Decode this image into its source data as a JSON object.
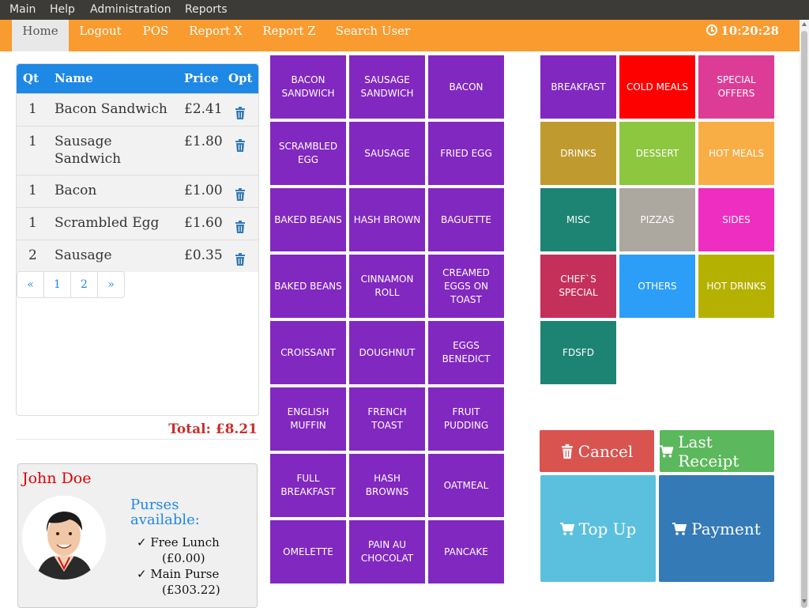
{
  "menubar": {
    "items": [
      "Main",
      "Help",
      "Administration",
      "Reports"
    ]
  },
  "nav": {
    "home": "Home",
    "logout": "Logout",
    "pos": "POS",
    "report_x": "Report X",
    "report_z": "Report Z",
    "search_user": "Search User",
    "clock": "10:20:28"
  },
  "order": {
    "headers": {
      "qt": "Qt",
      "name": "Name",
      "price": "Price",
      "opt": "Opt"
    },
    "rows": [
      {
        "qt": "1",
        "name": "Bacon Sandwich",
        "price": "£2.41"
      },
      {
        "qt": "1",
        "name": "Sausage Sandwich",
        "price": "£1.80"
      },
      {
        "qt": "1",
        "name": "Bacon",
        "price": "£1.00"
      },
      {
        "qt": "1",
        "name": "Scrambled Egg",
        "price": "£1.60"
      },
      {
        "qt": "2",
        "name": "Sausage",
        "price": "£0.35"
      }
    ],
    "pagination": [
      "«",
      "1",
      "2",
      "»"
    ],
    "total": "Total: £8.21"
  },
  "user": {
    "name": "John Doe",
    "purses_title": "Purses available:",
    "purses": [
      {
        "name": "✓ Free Lunch",
        "amount": "(£0.00)"
      },
      {
        "name": "✓ Main Purse",
        "amount": "(£303.22)"
      }
    ]
  },
  "products": [
    "BACON SANDWICH",
    "SAUSAGE SANDWICH",
    "BACON",
    "SCRAMBLED EGG",
    "SAUSAGE",
    "FRIED EGG",
    "BAKED BEANS",
    "HASH BROWN",
    "BAGUETTE",
    "BAKED BEANS",
    "CINNAMON ROLL",
    "CREAMED EGGS ON TOAST",
    "CROISSANT",
    "DOUGHNUT",
    "EGGS BENEDICT",
    "ENGLISH MUFFIN",
    "FRENCH TOAST",
    "FRUIT PUDDING",
    "FULL BREAKFAST",
    "HASH BROWNS",
    "OATMEAL",
    "OMELETTE",
    "PAIN AU CHOCOLAT",
    "PANCAKE"
  ],
  "product_color": "#8128c0",
  "categories": [
    {
      "label": "BREAKFAST",
      "color": "#8128c0"
    },
    {
      "label": "COLD MEALS",
      "color": "#fd0000"
    },
    {
      "label": "SPECIAL OFFERS",
      "color": "#dd3c96"
    },
    {
      "label": "DRINKS",
      "color": "#bf9a2f"
    },
    {
      "label": "DESSERT",
      "color": "#8dc63f"
    },
    {
      "label": "HOT MEALS",
      "color": "#f9ad45"
    },
    {
      "label": "MISC",
      "color": "#1d8473"
    },
    {
      "label": "PIZZAS",
      "color": "#aca89f"
    },
    {
      "label": "SIDES",
      "color": "#ee2ec0"
    },
    {
      "label": "CHEF`S SPECIAL",
      "color": "#c4305a"
    },
    {
      "label": "OTHERS",
      "color": "#2c9ef8"
    },
    {
      "label": "HOT DRINKS",
      "color": "#b5b100"
    },
    {
      "label": "FDSFD",
      "color": "#1d8473"
    }
  ],
  "actions": {
    "cancel": "Cancel",
    "last_receipt": "Last Receipt",
    "top_up": "Top Up",
    "payment": "Payment"
  },
  "colors": {
    "navbar": "#f99b2e",
    "table_header": "#1e88e5",
    "cancel": "#d9534f",
    "last_receipt": "#5cb85c",
    "top_up": "#5bc0de",
    "payment": "#337ab7"
  }
}
